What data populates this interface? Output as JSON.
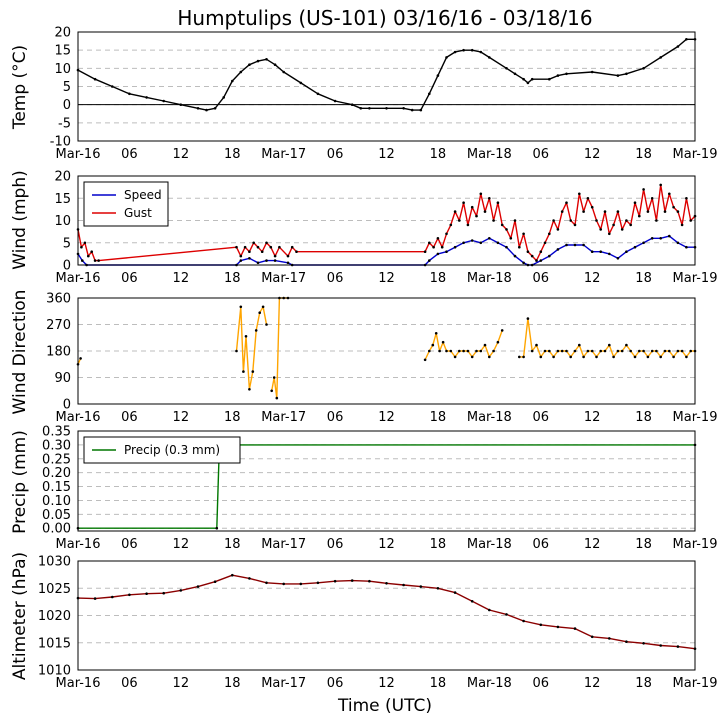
{
  "chart_data": {
    "type": "line",
    "title": "Humptulips (US-101) 03/16/16 - 03/18/16",
    "xlabel": "Time (UTC)",
    "x_unit": "hours since 2016-03-16 00:00 UTC",
    "xlim": [
      0,
      72
    ],
    "x_tick_hours": [
      0,
      6,
      12,
      18,
      24,
      30,
      36,
      42,
      48,
      54,
      60,
      66,
      72
    ],
    "x_tick_labels": [
      "Mar-16",
      "06",
      "12",
      "18",
      "Mar-17",
      "06",
      "12",
      "18",
      "Mar-18",
      "06",
      "12",
      "18",
      "Mar-19"
    ],
    "panels": [
      {
        "id": "temp",
        "ylabel": "Temp (°C)",
        "ylim": [
          -10,
          20
        ],
        "yticks": [
          -10,
          -5,
          0,
          5,
          10,
          15,
          20
        ],
        "hline": 0,
        "series": [
          {
            "name": "Temp",
            "color": "#000000",
            "x": [
              0,
              2,
              4,
              6,
              8,
              10,
              12,
              14,
              15,
              16,
              17,
              18,
              19,
              20,
              21,
              22,
              23,
              24,
              26,
              28,
              30,
              32,
              33,
              34,
              36,
              38,
              39,
              40,
              41,
              42,
              43,
              44,
              45,
              46,
              47,
              48,
              50,
              51,
              52,
              52.5,
              53,
              55,
              56,
              57,
              60,
              63,
              64,
              66,
              68,
              70,
              71,
              72
            ],
            "y": [
              9.5,
              7,
              5,
              3,
              2,
              1,
              0,
              -1,
              -1.5,
              -1,
              2,
              6.5,
              9,
              11,
              12,
              12.5,
              11,
              9,
              6,
              3,
              1,
              0,
              -1,
              -1,
              -1,
              -1,
              -1.5,
              -1.5,
              3,
              8,
              13,
              14.5,
              15,
              15,
              14.5,
              13,
              10,
              8.5,
              7,
              6,
              7,
              7,
              8,
              8.5,
              9,
              8,
              8.5,
              10,
              13,
              16,
              18,
              18
            ]
          }
        ]
      },
      {
        "id": "wind",
        "ylabel": "Wind (mph)",
        "ylim": [
          0,
          20
        ],
        "yticks": [
          0,
          5,
          10,
          15,
          20
        ],
        "legend": {
          "position": "top-left",
          "entries": [
            "Speed",
            "Gust"
          ]
        },
        "series": [
          {
            "name": "Speed",
            "color": "#0000cc",
            "x": [
              0,
              0.5,
              1,
              18.5,
              19,
              20,
              21,
              22,
              23,
              24.5,
              25,
              40.5,
              41,
              42,
              43,
              44,
              45,
              46,
              47,
              48,
              49,
              50,
              51,
              52,
              52.5,
              53,
              54,
              55,
              56,
              57,
              58,
              59,
              60,
              61,
              62,
              63,
              64,
              65,
              66,
              67,
              68,
              69,
              70,
              71,
              72
            ],
            "y": [
              2.5,
              1,
              0,
              0,
              1,
              1.5,
              0.5,
              1,
              1,
              0.5,
              0,
              0,
              1,
              2.5,
              3,
              4,
              5,
              5.5,
              5,
              6,
              5,
              4,
              2,
              0.5,
              0,
              0,
              1,
              2,
              3.5,
              4.5,
              4.5,
              4.5,
              3,
              3,
              2.5,
              1.5,
              3,
              4,
              5,
              6,
              6,
              6.5,
              5,
              4,
              4
            ]
          },
          {
            "name": "Gust",
            "color": "#dd0000",
            "x": [
              0,
              0.4,
              0.8,
              1.2,
              1.6,
              2,
              2.4,
              18.5,
              19,
              19.5,
              20,
              20.5,
              21,
              21.5,
              22,
              22.5,
              23,
              23.5,
              24.5,
              25,
              25.5,
              40.5,
              41,
              41.5,
              42,
              42.5,
              43,
              43.5,
              44,
              44.5,
              45,
              45.5,
              46,
              46.5,
              47,
              47.5,
              48,
              48.5,
              49,
              49.5,
              50,
              50.5,
              51,
              51.5,
              52,
              52.5,
              53,
              53.5,
              54,
              54.5,
              55,
              55.5,
              56,
              56.5,
              57,
              57.5,
              58,
              58.5,
              59,
              59.5,
              60,
              60.5,
              61,
              61.5,
              62,
              62.5,
              63,
              63.5,
              64,
              64.5,
              65,
              65.5,
              66,
              66.5,
              67,
              67.5,
              68,
              68.5,
              69,
              69.5,
              70,
              70.5,
              71,
              71.5,
              72
            ],
            "y": [
              8,
              4,
              5,
              2,
              3,
              1,
              1,
              4,
              2,
              4,
              3,
              5,
              4,
              3,
              5,
              4,
              2,
              4,
              2,
              4,
              3,
              3,
              5,
              4,
              6,
              4,
              7,
              9,
              12,
              10,
              14,
              9,
              13,
              11,
              16,
              12,
              15,
              10,
              14,
              9,
              8,
              6,
              10,
              4,
              7,
              3,
              2,
              1,
              3,
              5,
              7,
              10,
              8,
              12,
              14,
              10,
              9,
              16,
              12,
              15,
              13,
              10,
              8,
              12,
              7,
              9,
              12,
              8,
              10,
              9,
              14,
              11,
              17,
              12,
              15,
              10,
              18,
              12,
              16,
              13,
              12,
              9,
              15,
              10,
              11
            ]
          }
        ]
      },
      {
        "id": "direction",
        "ylabel": "Wind Direction",
        "ylim": [
          0,
          360
        ],
        "yticks": [
          0,
          90,
          180,
          270,
          360
        ],
        "series": [
          {
            "name": "Direction",
            "color": "#ffa500",
            "x": [
              0,
              0.3,
              null,
              18.5,
              19,
              19.3,
              19.6,
              20,
              20.4,
              20.8,
              21.2,
              21.6,
              22,
              null,
              22.6,
              22.9,
              23.2,
              23.5,
              24,
              24.5,
              null,
              40.5,
              41,
              41.4,
              41.8,
              42.2,
              42.6,
              43,
              43.5,
              44,
              44.5,
              45,
              45.5,
              46,
              46.5,
              47,
              47.5,
              48,
              48.5,
              49,
              49.5,
              null,
              51.5,
              52,
              52.5,
              53,
              53.5,
              54,
              54.5,
              55,
              55.5,
              56,
              56.5,
              57,
              57.5,
              58,
              58.5,
              59,
              59.5,
              60,
              60.5,
              61,
              61.5,
              62,
              62.5,
              63,
              63.5,
              64,
              64.5,
              65,
              65.5,
              66,
              66.5,
              67,
              67.5,
              68,
              68.5,
              69,
              69.5,
              70,
              70.5,
              71,
              71.5,
              72
            ],
            "y": [
              135,
              155,
              null,
              180,
              330,
              110,
              230,
              50,
              110,
              250,
              310,
              330,
              270,
              null,
              45,
              90,
              20,
              360,
              360,
              360,
              null,
              150,
              180,
              200,
              240,
              180,
              210,
              180,
              180,
              160,
              180,
              180,
              180,
              160,
              180,
              180,
              200,
              160,
              180,
              210,
              250,
              null,
              160,
              160,
              290,
              180,
              200,
              160,
              180,
              180,
              160,
              180,
              180,
              180,
              160,
              180,
              200,
              160,
              180,
              180,
              160,
              180,
              180,
              200,
              160,
              180,
              180,
              200,
              180,
              160,
              180,
              180,
              160,
              180,
              180,
              160,
              180,
              180,
              160,
              180,
              180,
              160,
              180,
              180
            ]
          }
        ]
      },
      {
        "id": "precip",
        "ylabel": "Precip (mm)",
        "ylim": [
          -0.01,
          0.35
        ],
        "yticks": [
          0.0,
          0.05,
          0.1,
          0.15,
          0.2,
          0.25,
          0.3,
          0.35
        ],
        "legend": {
          "position": "top-left",
          "entries": [
            "Precip (0.3 mm)"
          ]
        },
        "series": [
          {
            "name": "Precip (0.3 mm)",
            "color": "#007700",
            "x": [
              0,
              16.2,
              16.5,
              72
            ],
            "y": [
              0,
              0,
              0.3,
              0.3
            ]
          }
        ]
      },
      {
        "id": "altimeter",
        "ylabel": "Altimeter (hPa)",
        "ylim": [
          1010,
          1030
        ],
        "yticks": [
          1010,
          1015,
          1020,
          1025,
          1030
        ],
        "series": [
          {
            "name": "Altimeter",
            "color": "#8b0000",
            "x": [
              0,
              2,
              4,
              6,
              8,
              10,
              12,
              14,
              16,
              18,
              20,
              22,
              24,
              26,
              28,
              30,
              32,
              34,
              36,
              38,
              40,
              42,
              44,
              46,
              48,
              50,
              52,
              54,
              56,
              58,
              60,
              62,
              64,
              66,
              68,
              70,
              72
            ],
            "y": [
              1023.2,
              1023.1,
              1023.4,
              1023.8,
              1024.0,
              1024.1,
              1024.6,
              1025.3,
              1026.2,
              1027.4,
              1026.8,
              1026.0,
              1025.8,
              1025.8,
              1026.0,
              1026.3,
              1026.4,
              1026.3,
              1025.9,
              1025.6,
              1025.3,
              1025.0,
              1024.2,
              1022.6,
              1021.0,
              1020.2,
              1019.0,
              1018.3,
              1017.9,
              1017.6,
              1016.1,
              1015.8,
              1015.2,
              1014.9,
              1014.5,
              1014.3,
              1013.9
            ]
          }
        ]
      }
    ]
  }
}
